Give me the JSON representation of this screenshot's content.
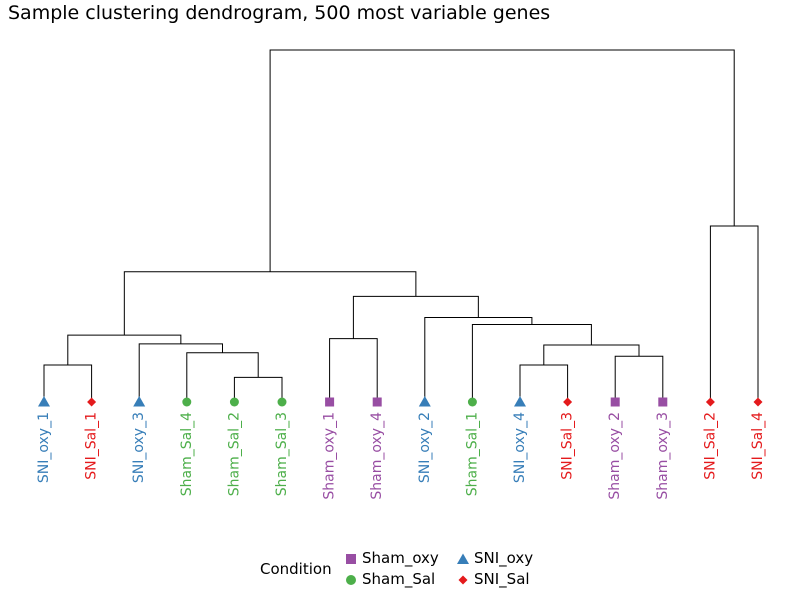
{
  "chart_data": {
    "type": "dendrogram",
    "title": "Sample clustering dendrogram, 500 most variable genes",
    "legend": {
      "title": "Condition",
      "placement": "bottom",
      "entries": [
        {
          "label": "Sham_oxy",
          "shape": "square",
          "color": "#984EA3"
        },
        {
          "label": "Sham_Sal",
          "shape": "circle",
          "color": "#4DAF4A"
        },
        {
          "label": "SNI_oxy",
          "shape": "triangle",
          "color": "#377EB8"
        },
        {
          "label": "SNI_Sal",
          "shape": "diamond",
          "color": "#E41A1C"
        }
      ]
    },
    "leaves": [
      {
        "label": "SNI_oxy_1",
        "condition": "SNI_oxy"
      },
      {
        "label": "SNI_Sal_1",
        "condition": "SNI_Sal"
      },
      {
        "label": "SNI_oxy_3",
        "condition": "SNI_oxy"
      },
      {
        "label": "Sham_Sal_4",
        "condition": "Sham_Sal"
      },
      {
        "label": "Sham_Sal_2",
        "condition": "Sham_Sal"
      },
      {
        "label": "Sham_Sal_3",
        "condition": "Sham_Sal"
      },
      {
        "label": "Sham_oxy_1",
        "condition": "Sham_oxy"
      },
      {
        "label": "Sham_oxy_4",
        "condition": "Sham_oxy"
      },
      {
        "label": "SNI_oxy_2",
        "condition": "SNI_oxy"
      },
      {
        "label": "Sham_Sal_1",
        "condition": "Sham_Sal"
      },
      {
        "label": "SNI_oxy_4",
        "condition": "SNI_oxy"
      },
      {
        "label": "SNI_Sal_3",
        "condition": "SNI_Sal"
      },
      {
        "label": "Sham_oxy_2",
        "condition": "Sham_oxy"
      },
      {
        "label": "Sham_oxy_3",
        "condition": "Sham_oxy"
      },
      {
        "label": "SNI_Sal_2",
        "condition": "SNI_Sal"
      },
      {
        "label": "SNI_Sal_4",
        "condition": "SNI_Sal"
      }
    ],
    "merges": [
      {
        "left": 4,
        "right": 5,
        "height": 0.07
      },
      {
        "left": 10,
        "right": 11,
        "height": 0.105
      },
      {
        "left": 12,
        "right": 13,
        "height": 0.13
      },
      {
        "left": 0,
        "right": 1,
        "height": 0.105
      },
      {
        "left": 3,
        "right": "m1",
        "height": 0.14
      },
      {
        "left": "m2",
        "right": "m3",
        "height": 0.162
      },
      {
        "left": 2,
        "right": "m5",
        "height": 0.165
      },
      {
        "left": "m4",
        "right": "m7",
        "height": 0.19
      },
      {
        "left": 6,
        "right": 7,
        "height": 0.18
      },
      {
        "left": 9,
        "right": "m6",
        "height": 0.22
      },
      {
        "left": 8,
        "right": "m10",
        "height": 0.24
      },
      {
        "left": "m9",
        "right": "m11",
        "height": 0.3
      },
      {
        "left": "m8",
        "right": "m12",
        "height": 0.37
      },
      {
        "left": 14,
        "right": 15,
        "height": 0.5
      },
      {
        "left": "m13",
        "right": "m14",
        "height": 1.0
      }
    ]
  }
}
